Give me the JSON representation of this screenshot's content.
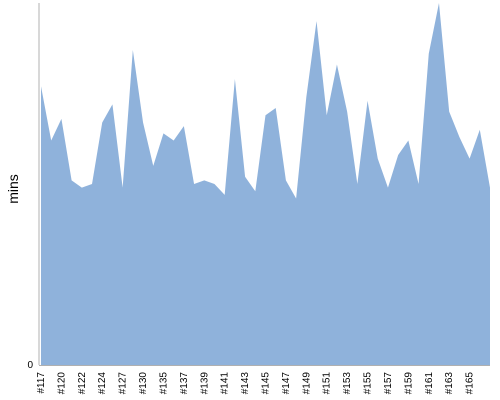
{
  "chart_data": {
    "type": "area",
    "title": "",
    "xlabel": "",
    "ylabel": "mins",
    "ylim": [
      0,
      100
    ],
    "y_ticks": [
      0
    ],
    "grid": false,
    "legend": "none",
    "fill_color": "#8fb2db",
    "axis_color": "#b0b0b0",
    "x_tick_labels": [
      "#117",
      "#120",
      "#122",
      "#124",
      "#127",
      "#130",
      "#135",
      "#137",
      "#139",
      "#141",
      "#143",
      "#145",
      "#147",
      "#149",
      "#151",
      "#153",
      "#155",
      "#157",
      "#159",
      "#161",
      "#163",
      "#165"
    ],
    "x_tick_positions": [
      0,
      2,
      4,
      6,
      8,
      10,
      12,
      14,
      16,
      18,
      20,
      22,
      24,
      26,
      28,
      30,
      32,
      34,
      36,
      38,
      40,
      42
    ],
    "series": [
      {
        "values": [
          77,
          62,
          68,
          51,
          49,
          50,
          67,
          72,
          49,
          87,
          67,
          55,
          64,
          62,
          66,
          50,
          51,
          50,
          47,
          79,
          52,
          48,
          69,
          71,
          51,
          46,
          74,
          95,
          69,
          83,
          70,
          50,
          73,
          57,
          49,
          58,
          62,
          50,
          86,
          100,
          70,
          63,
          57,
          65,
          49
        ]
      }
    ]
  }
}
